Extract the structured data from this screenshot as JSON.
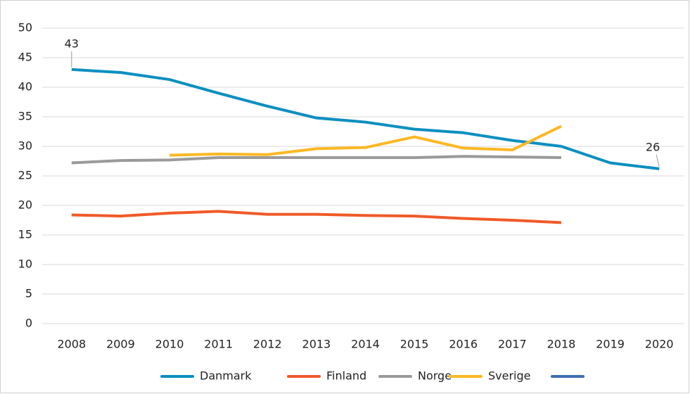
{
  "chart_data": {
    "type": "line",
    "categories": [
      "2008",
      "2009",
      "2010",
      "2011",
      "2012",
      "2013",
      "2014",
      "2015",
      "2016",
      "2017",
      "2018",
      "2019",
      "2020"
    ],
    "series": [
      {
        "name": "Danmark",
        "color": "#0a8fc0",
        "values": [
          43,
          42.5,
          41.3,
          39,
          36.8,
          34.8,
          34.1,
          32.9,
          32.3,
          31,
          30,
          27.2,
          26.2
        ],
        "value_labels": [
          "43",
          null,
          null,
          null,
          null,
          null,
          null,
          null,
          null,
          null,
          null,
          null,
          "26"
        ]
      },
      {
        "name": "Finland",
        "color": "#f05a28",
        "values": [
          18.4,
          18.2,
          18.7,
          19,
          18.5,
          18.5,
          18.3,
          18.2,
          17.8,
          17.5,
          17.1,
          null,
          null
        ]
      },
      {
        "name": "Norge",
        "color": "#9a9a9a",
        "values": [
          27.2,
          27.6,
          27.7,
          28.1,
          28.1,
          28.1,
          28.1,
          28.1,
          28.3,
          28.2,
          28.1,
          null,
          null
        ]
      },
      {
        "name": "Sverige",
        "color": "#fbb824",
        "values": [
          null,
          null,
          28.5,
          28.7,
          28.6,
          29.6,
          29.8,
          31.6,
          29.7,
          29.4,
          33.4,
          null,
          null
        ]
      },
      {
        "name": null,
        "color": "#3d6eb4",
        "values": [
          null,
          null,
          null,
          null,
          null,
          null,
          null,
          null,
          null,
          null,
          null,
          null,
          null
        ]
      }
    ],
    "ylim": [
      0,
      50
    ],
    "yticks": [
      0,
      5,
      10,
      15,
      20,
      25,
      30,
      35,
      40,
      45,
      50
    ],
    "grid": true,
    "legend": "bottom"
  }
}
